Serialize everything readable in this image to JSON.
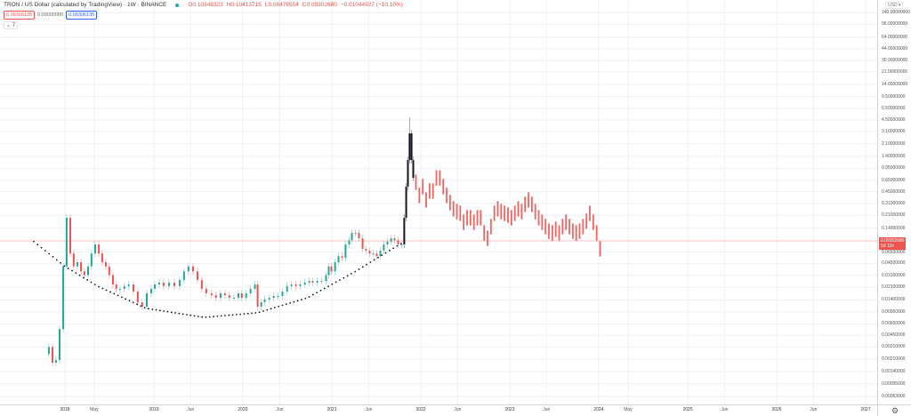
{
  "header": {
    "title": "TRON / US Dollar (calculated by TradingView) · 1W · BINANCE",
    "status_color": "#26a69a",
    "open": "O0.10348323",
    "high": "H0.10413715",
    "low": "L0.08478554",
    "close": "C0.09302680",
    "change": "−0.01044927 (−10.10%)",
    "sell_price": "0.09306135",
    "spread": "0.00000000",
    "buy_price": "0.09306135",
    "indicators_toggle": "⌄ 7"
  },
  "axis": {
    "currency": "USD ▾",
    "settings_icon": "gear-icon",
    "current_price": "0.09302680",
    "countdown": "5d 11h"
  },
  "colors": {
    "up": "#26a69a",
    "down": "#ef5350",
    "impulse": "#131722",
    "projection": "#ef5350",
    "curve": "#131722",
    "grid": "#eef1f6"
  },
  "chart_data": {
    "type": "candlestick",
    "scale": "log",
    "interval": "1W",
    "grid": true,
    "ylim": [
      0.0005,
      180
    ],
    "xlim": [
      "2017-08-01",
      "2027-02-15"
    ],
    "yticks": [
      140,
      96,
      64,
      44,
      30,
      21,
      14,
      9.5,
      6.5,
      4.5,
      3.1,
      2.1,
      1.4,
      0.95,
      0.65,
      0.45,
      0.31,
      0.21,
      0.14,
      0.065,
      0.045,
      0.031,
      0.021,
      0.014,
      0.0095,
      0.0065,
      0.0045,
      0.0031,
      0.0021,
      0.0014,
      0.00095,
      0.00063
    ],
    "ytick_labels": [
      "140.00000000",
      "96.00000000",
      "64.00000000",
      "44.00000000",
      "30.00000000",
      "21.00000000",
      "14.00000000",
      "9.50000000",
      "6.50000000",
      "4.50000000",
      "3.10000000",
      "2.10000000",
      "1.40000000",
      "0.95000000",
      "0.65000000",
      "0.45000000",
      "0.31000000",
      "0.21000000",
      "0.14000000",
      "0.06500000",
      "0.04500000",
      "0.03100000",
      "0.02100000",
      "0.01400000",
      "0.00950000",
      "0.00650000",
      "0.00450000",
      "0.00310000",
      "0.00210000",
      "0.00140000",
      "0.00095000",
      "0.00063000"
    ],
    "xticks": [
      {
        "date": "2018-01-01",
        "label": "2018"
      },
      {
        "date": "2018-05-01",
        "label": "May"
      },
      {
        "date": "2019-01-01",
        "label": "2019"
      },
      {
        "date": "2019-06-01",
        "label": "Jun"
      },
      {
        "date": "2020-01-01",
        "label": "2020"
      },
      {
        "date": "2020-06-01",
        "label": "Jun"
      },
      {
        "date": "2021-01-01",
        "label": "2021"
      },
      {
        "date": "2021-06-01",
        "label": "Jun"
      },
      {
        "date": "2022-01-01",
        "label": "2022"
      },
      {
        "date": "2022-06-01",
        "label": "Jun"
      },
      {
        "date": "2023-01-01",
        "label": "2023"
      },
      {
        "date": "2023-06-01",
        "label": "Jun"
      },
      {
        "date": "2024-01-01",
        "label": "2024"
      },
      {
        "date": "2024-05-01",
        "label": "May"
      },
      {
        "date": "2025-01-01",
        "label": "2025"
      },
      {
        "date": "2025-06-01",
        "label": "Jun"
      },
      {
        "date": "2026-01-01",
        "label": "2026"
      },
      {
        "date": "2026-06-01",
        "label": "Jun"
      },
      {
        "date": "2027-01-01",
        "label": "2027"
      }
    ],
    "current_price": 0.0930268,
    "series": [
      {
        "style": "candles",
        "closes": [
          [
            "2017-10-27",
            0.0031
          ],
          [
            "2017-11-11",
            0.00187
          ],
          [
            "2017-11-25",
            0.00204
          ],
          [
            "2017-12-10",
            0.0055
          ],
          [
            "2017-12-25",
            0.041
          ],
          [
            "2018-01-08",
            0.195
          ],
          [
            "2018-01-23",
            0.062
          ],
          [
            "2018-02-06",
            0.041
          ],
          [
            "2018-02-21",
            0.047
          ],
          [
            "2018-03-08",
            0.035
          ],
          [
            "2018-03-22",
            0.031
          ],
          [
            "2018-04-06",
            0.041
          ],
          [
            "2018-04-20",
            0.062
          ],
          [
            "2018-05-05",
            0.083
          ],
          [
            "2018-05-20",
            0.062
          ],
          [
            "2018-06-03",
            0.047
          ],
          [
            "2018-06-18",
            0.041
          ],
          [
            "2018-07-02",
            0.031
          ],
          [
            "2018-07-17",
            0.023
          ],
          [
            "2018-07-31",
            0.02
          ],
          [
            "2018-08-15",
            0.02
          ],
          [
            "2018-09-02",
            0.0218
          ],
          [
            "2018-09-20",
            0.023
          ],
          [
            "2018-10-09",
            0.0183
          ],
          [
            "2018-10-27",
            0.013
          ],
          [
            "2018-11-14",
            0.0113
          ],
          [
            "2018-12-03",
            0.0173
          ],
          [
            "2018-12-21",
            0.02
          ],
          [
            "2019-01-05",
            0.023
          ],
          [
            "2019-01-23",
            0.0244
          ],
          [
            "2019-02-10",
            0.0218
          ],
          [
            "2019-03-04",
            0.0244
          ],
          [
            "2019-03-26",
            0.0218
          ],
          [
            "2019-04-17",
            0.0265
          ],
          [
            "2019-05-05",
            0.035
          ],
          [
            "2019-05-23",
            0.041
          ],
          [
            "2019-06-11",
            0.035
          ],
          [
            "2019-06-29",
            0.0265
          ],
          [
            "2019-07-17",
            0.02
          ],
          [
            "2019-08-04",
            0.0173
          ],
          [
            "2019-08-26",
            0.0163
          ],
          [
            "2019-09-13",
            0.015
          ],
          [
            "2019-10-02",
            0.0173
          ],
          [
            "2019-10-20",
            0.0163
          ],
          [
            "2019-11-07",
            0.015
          ],
          [
            "2019-11-26",
            0.015
          ],
          [
            "2019-12-14",
            0.0173
          ],
          [
            "2019-12-28",
            0.015
          ],
          [
            "2020-01-15",
            0.0173
          ],
          [
            "2020-02-02",
            0.02
          ],
          [
            "2020-02-20",
            0.023
          ],
          [
            "2020-03-02",
            0.0113
          ],
          [
            "2020-03-17",
            0.013
          ],
          [
            "2020-03-31",
            0.0142
          ],
          [
            "2020-04-19",
            0.015
          ],
          [
            "2020-05-07",
            0.0159
          ],
          [
            "2020-05-25",
            0.0159
          ],
          [
            "2020-06-12",
            0.0183
          ],
          [
            "2020-07-01",
            0.0218
          ],
          [
            "2020-07-19",
            0.023
          ],
          [
            "2020-08-06",
            0.0218
          ],
          [
            "2020-08-24",
            0.023
          ],
          [
            "2020-09-12",
            0.0244
          ],
          [
            "2020-09-30",
            0.0257
          ],
          [
            "2020-10-14",
            0.0244
          ],
          [
            "2020-11-02",
            0.0257
          ],
          [
            "2020-11-20",
            0.0257
          ],
          [
            "2020-12-08",
            0.031
          ],
          [
            "2020-12-19",
            0.041
          ],
          [
            "2020-12-30",
            0.035
          ],
          [
            "2021-01-14",
            0.047
          ],
          [
            "2021-01-28",
            0.057
          ],
          [
            "2021-02-12",
            0.054
          ],
          [
            "2021-02-26",
            0.083
          ],
          [
            "2021-03-13",
            0.095
          ],
          [
            "2021-03-24",
            0.12
          ],
          [
            "2021-04-08",
            0.12
          ],
          [
            "2021-04-22",
            0.101
          ],
          [
            "2021-05-07",
            0.072
          ],
          [
            "2021-05-21",
            0.068
          ],
          [
            "2021-06-05",
            0.062
          ],
          [
            "2021-06-20",
            0.062
          ],
          [
            "2021-07-04",
            0.057
          ],
          [
            "2021-07-19",
            0.068
          ],
          [
            "2021-08-02",
            0.083
          ],
          [
            "2021-08-17",
            0.091
          ],
          [
            "2021-09-01",
            0.101
          ],
          [
            "2021-09-15",
            0.095
          ],
          [
            "2021-09-30",
            0.083
          ],
          [
            "2021-10-14",
            0.083
          ]
        ]
      },
      {
        "style": "impulse",
        "closes": [
          [
            "2021-10-25",
            0.195
          ],
          [
            "2021-11-02",
            0.53
          ],
          [
            "2021-11-09",
            1.24
          ],
          [
            "2021-11-16",
            2.92
          ],
          [
            "2021-11-24",
            1.24
          ],
          [
            "2021-12-01",
            0.7
          ]
        ],
        "peak_high": 4.9
      },
      {
        "style": "projection",
        "closes": [
          [
            "2021-12-12",
            0.61
          ],
          [
            "2021-12-26",
            0.4
          ],
          [
            "2022-01-09",
            0.53
          ],
          [
            "2022-01-23",
            0.345
          ],
          [
            "2022-02-06",
            0.46
          ],
          [
            "2022-02-20",
            0.46
          ],
          [
            "2022-03-06",
            0.7
          ],
          [
            "2022-03-20",
            0.7
          ],
          [
            "2022-04-03",
            0.53
          ],
          [
            "2022-04-17",
            0.4
          ],
          [
            "2022-05-01",
            0.317
          ],
          [
            "2022-05-15",
            0.26
          ],
          [
            "2022-05-29",
            0.238
          ],
          [
            "2022-06-12",
            0.225
          ],
          [
            "2022-06-26",
            0.169
          ],
          [
            "2022-07-10",
            0.195
          ],
          [
            "2022-07-24",
            0.195
          ],
          [
            "2022-08-07",
            0.169
          ],
          [
            "2022-08-21",
            0.195
          ],
          [
            "2022-09-04",
            0.195
          ],
          [
            "2022-09-18",
            0.12
          ],
          [
            "2022-10-02",
            0.101
          ],
          [
            "2022-10-16",
            0.147
          ],
          [
            "2022-10-30",
            0.225
          ],
          [
            "2022-11-13",
            0.26
          ],
          [
            "2022-11-27",
            0.238
          ],
          [
            "2022-12-11",
            0.225
          ],
          [
            "2022-12-25",
            0.213
          ],
          [
            "2023-01-08",
            0.195
          ],
          [
            "2023-01-22",
            0.225
          ],
          [
            "2023-02-05",
            0.26
          ],
          [
            "2023-02-19",
            0.238
          ],
          [
            "2023-03-05",
            0.3
          ],
          [
            "2023-03-19",
            0.345
          ],
          [
            "2023-04-02",
            0.3
          ],
          [
            "2023-04-16",
            0.238
          ],
          [
            "2023-04-30",
            0.195
          ],
          [
            "2023-05-14",
            0.169
          ],
          [
            "2023-05-28",
            0.147
          ],
          [
            "2023-06-11",
            0.127
          ],
          [
            "2023-06-25",
            0.12
          ],
          [
            "2023-07-09",
            0.135
          ],
          [
            "2023-07-23",
            0.12
          ],
          [
            "2023-08-06",
            0.147
          ],
          [
            "2023-08-20",
            0.169
          ],
          [
            "2023-09-03",
            0.147
          ],
          [
            "2023-09-17",
            0.127
          ],
          [
            "2023-10-01",
            0.12
          ],
          [
            "2023-10-15",
            0.127
          ],
          [
            "2023-10-29",
            0.147
          ],
          [
            "2023-11-12",
            0.175
          ],
          [
            "2023-11-26",
            0.225
          ],
          [
            "2023-12-10",
            0.169
          ],
          [
            "2023-12-24",
            0.12
          ],
          [
            "2024-01-07",
            0.072
          ]
        ]
      }
    ],
    "curve": [
      [
        "2017-08-26",
        0.091
      ],
      [
        "2018-01-01",
        0.041
      ],
      [
        "2018-05-15",
        0.0218
      ],
      [
        "2018-11-30",
        0.0107
      ],
      [
        "2019-07-27",
        0.008
      ],
      [
        "2020-03-02",
        0.0093
      ],
      [
        "2020-09-23",
        0.015
      ],
      [
        "2021-04-08",
        0.035
      ],
      [
        "2021-10-25",
        0.091
      ]
    ]
  }
}
